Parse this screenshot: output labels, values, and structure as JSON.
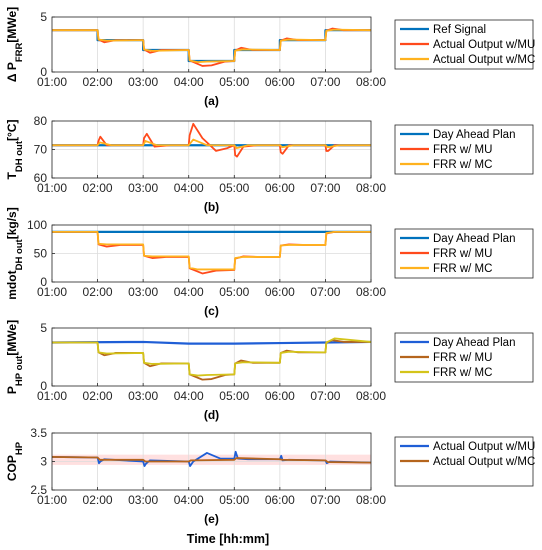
{
  "figure": {
    "xlabel": "Time [hh:mm]",
    "x_ticks": [
      "01:00",
      "02:00",
      "03:00",
      "04:00",
      "05:00",
      "06:00",
      "07:00",
      "08:00"
    ]
  },
  "chart_data": [
    {
      "type": "line",
      "panel_label": "(a)",
      "ylabel_main": "Δ P",
      "ylabel_sub": "FRR",
      "ylabel_unit": "[MWe]",
      "xlim": [
        1,
        8
      ],
      "ylim": [
        0,
        5
      ],
      "yticks": [
        0,
        5
      ],
      "grid": true,
      "legend_position": "right",
      "series": [
        {
          "name": "Ref Signal",
          "color": "#0072bd",
          "width": 2.2,
          "x": [
            1,
            2,
            2,
            3,
            3,
            4,
            4,
            5,
            5,
            6,
            6,
            7,
            7,
            8
          ],
          "y": [
            3.8,
            3.8,
            2.9,
            2.9,
            2.0,
            2.0,
            1.0,
            1.0,
            2.0,
            2.0,
            2.9,
            2.9,
            3.8,
            3.8
          ]
        },
        {
          "name": "Actual Output w/MU",
          "color": "#ff4a1c",
          "width": 1.8,
          "x": [
            1,
            2,
            2.02,
            2.15,
            2.4,
            3,
            3.02,
            3.15,
            3.4,
            4,
            4.02,
            4.3,
            4.5,
            4.8,
            5,
            5.02,
            5.15,
            5.4,
            6,
            6.02,
            6.15,
            6.4,
            7,
            7.02,
            7.15,
            7.4,
            8
          ],
          "y": [
            3.8,
            3.8,
            2.95,
            2.7,
            2.9,
            2.9,
            2.05,
            1.75,
            2.0,
            2.0,
            1.05,
            0.55,
            0.6,
            0.95,
            1.0,
            1.95,
            2.2,
            2.0,
            2.0,
            2.85,
            3.05,
            2.9,
            2.9,
            3.75,
            3.95,
            3.8,
            3.8
          ]
        },
        {
          "name": "Actual Output w/MC",
          "color": "#ffb21e",
          "width": 1.8,
          "x": [
            1,
            2,
            2.02,
            2.2,
            3,
            3.02,
            3.2,
            4,
            4.02,
            4.2,
            4.4,
            5,
            5.02,
            5.2,
            6,
            6.02,
            6.2,
            7,
            7.02,
            7.2,
            8
          ],
          "y": [
            3.8,
            3.8,
            2.95,
            2.85,
            2.9,
            2.05,
            1.92,
            2.0,
            1.05,
            0.9,
            0.95,
            1.0,
            1.95,
            2.05,
            2.0,
            2.85,
            2.95,
            2.9,
            3.75,
            3.85,
            3.8
          ]
        }
      ]
    },
    {
      "type": "line",
      "panel_label": "(b)",
      "ylabel_main": "T",
      "ylabel_sub": "DH out",
      "ylabel_unit": "[°C]",
      "xlim": [
        1,
        8
      ],
      "ylim": [
        60,
        80
      ],
      "yticks": [
        60,
        70,
        80
      ],
      "grid": true,
      "legend_position": "right",
      "series": [
        {
          "name": "Day Ahead Plan",
          "color": "#0072bd",
          "width": 2.2,
          "x": [
            1,
            8
          ],
          "y": [
            71.5,
            71.5
          ]
        },
        {
          "name": "FRR w/ MU",
          "color": "#ff4a1c",
          "width": 1.8,
          "x": [
            1,
            2,
            2.02,
            2.06,
            2.2,
            2.5,
            3,
            3.02,
            3.08,
            3.25,
            3.6,
            4,
            4.02,
            4.1,
            4.3,
            4.6,
            4.85,
            5,
            5.02,
            5.06,
            5.2,
            5.5,
            6,
            6.02,
            6.06,
            6.2,
            7,
            7.02,
            7.06,
            7.2,
            8
          ],
          "y": [
            71.5,
            71.5,
            73,
            74.5,
            71.5,
            71.5,
            71.5,
            74,
            75.5,
            71,
            71.5,
            71.5,
            75,
            79,
            74,
            69.5,
            70.5,
            71.5,
            68,
            67.5,
            71,
            71.5,
            71.5,
            69,
            68.5,
            71.5,
            71.5,
            69.5,
            69.5,
            71.5,
            71.5
          ]
        },
        {
          "name": "FRR w/ MC",
          "color": "#ffb21e",
          "width": 1.8,
          "x": [
            1,
            2,
            2.05,
            2.3,
            3,
            3.05,
            3.3,
            4,
            4.1,
            4.4,
            5,
            5.05,
            5.3,
            6,
            6.05,
            6.3,
            7,
            7.05,
            7.3,
            8
          ],
          "y": [
            71.5,
            71.5,
            72.5,
            71.5,
            71.5,
            73,
            71.5,
            71.5,
            73.5,
            71.5,
            71.5,
            70.5,
            71.5,
            71.5,
            70.8,
            71.5,
            71.5,
            70.8,
            71.5,
            71.5
          ]
        }
      ]
    },
    {
      "type": "line",
      "panel_label": "(c)",
      "ylabel_main": "mdot",
      "ylabel_sub": "DH out",
      "ylabel_unit": "[kg/s]",
      "xlim": [
        1,
        8
      ],
      "ylim": [
        0,
        100
      ],
      "yticks": [
        0,
        50,
        100
      ],
      "grid": true,
      "legend_position": "right",
      "series": [
        {
          "name": "Day Ahead Plan",
          "color": "#0072bd",
          "width": 2.2,
          "x": [
            1,
            8
          ],
          "y": [
            88,
            88
          ]
        },
        {
          "name": "FRR w/ MU",
          "color": "#ff4a1c",
          "width": 1.8,
          "x": [
            1,
            2,
            2.02,
            2.2,
            2.5,
            3,
            3.02,
            3.2,
            3.5,
            4,
            4.02,
            4.3,
            4.6,
            5,
            5.02,
            5.2,
            5.5,
            6,
            6.02,
            6.2,
            6.5,
            7,
            7.02,
            7.2,
            7.5,
            8
          ],
          "y": [
            88,
            88,
            66,
            62,
            65,
            65,
            46,
            42,
            44,
            44,
            24,
            15,
            20,
            21,
            41,
            45,
            44,
            44,
            64,
            66,
            65,
            65,
            85,
            88,
            88,
            88
          ]
        },
        {
          "name": "FRR w/ MC",
          "color": "#ffb21e",
          "width": 1.8,
          "x": [
            1,
            2,
            2.02,
            2.2,
            3,
            3.02,
            3.2,
            4,
            4.02,
            4.2,
            5,
            5.02,
            5.2,
            6,
            6.02,
            6.2,
            7,
            7.02,
            7.2,
            8
          ],
          "y": [
            88,
            88,
            67,
            66,
            66,
            46,
            45,
            45,
            25,
            22,
            22,
            42,
            44,
            44,
            64,
            65,
            65,
            86,
            88,
            88
          ]
        }
      ]
    },
    {
      "type": "line",
      "panel_label": "(d)",
      "ylabel_main": "P",
      "ylabel_sub": "HP out",
      "ylabel_unit": "[MWe]",
      "xlim": [
        1,
        8
      ],
      "ylim": [
        0,
        5
      ],
      "yticks": [
        0,
        5
      ],
      "grid": true,
      "legend_position": "right",
      "series": [
        {
          "name": "Day Ahead Plan",
          "color": "#1f5ed6",
          "width": 2.2,
          "x": [
            1,
            3,
            4,
            5,
            6,
            7,
            8
          ],
          "y": [
            3.75,
            3.8,
            3.65,
            3.65,
            3.7,
            3.75,
            3.8
          ]
        },
        {
          "name": "FRR w/ MU",
          "color": "#b5651d",
          "width": 1.8,
          "x": [
            1,
            2,
            2.02,
            2.15,
            2.4,
            3,
            3.02,
            3.15,
            3.4,
            4,
            4.02,
            4.3,
            4.5,
            4.8,
            5,
            5.02,
            5.15,
            5.4,
            6,
            6.02,
            6.15,
            6.4,
            7,
            7.02,
            7.15,
            7.4,
            8
          ],
          "y": [
            3.75,
            3.75,
            2.9,
            2.65,
            2.85,
            2.85,
            2.0,
            1.7,
            1.95,
            1.95,
            1.0,
            0.55,
            0.6,
            0.95,
            1.0,
            1.95,
            2.2,
            2.0,
            2.0,
            2.85,
            3.05,
            2.9,
            2.9,
            3.75,
            3.95,
            3.8,
            3.8
          ]
        },
        {
          "name": "FRR w/ MC",
          "color": "#d4c41a",
          "width": 1.8,
          "x": [
            1,
            2,
            2.02,
            2.2,
            3,
            3.02,
            3.2,
            4,
            4.02,
            4.2,
            4.4,
            5,
            5.02,
            5.2,
            6,
            6.02,
            6.2,
            7,
            7.02,
            7.2,
            8
          ],
          "y": [
            3.75,
            3.75,
            2.9,
            2.8,
            2.85,
            2.0,
            1.9,
            1.95,
            1.0,
            0.9,
            0.95,
            1.0,
            1.95,
            2.05,
            2.0,
            2.85,
            2.95,
            2.9,
            3.75,
            4.1,
            3.8
          ]
        }
      ]
    },
    {
      "type": "line",
      "panel_label": "(e)",
      "ylabel_main": "COP",
      "ylabel_sub": "HP",
      "ylabel_unit": "",
      "xlim": [
        1,
        8
      ],
      "ylim": [
        2.5,
        3.5
      ],
      "yticks": [
        2.5,
        3,
        3.5
      ],
      "grid": true,
      "legend_position": "right",
      "band": {
        "color": "#ffc6c6",
        "y0": 2.94,
        "y1": 3.12
      },
      "series": [
        {
          "name": "Actual Output w/MU",
          "color": "#1f5ed6",
          "width": 1.8,
          "x": [
            1,
            2,
            2.03,
            2.06,
            2.15,
            3,
            3.03,
            3.06,
            3.15,
            4,
            4.03,
            4.1,
            4.4,
            4.7,
            5,
            5.03,
            5.08,
            5.3,
            6,
            6.03,
            6.06,
            6.2,
            7,
            7.03,
            7.1,
            8
          ],
          "y": [
            3.08,
            3.07,
            2.97,
            3.0,
            3.04,
            3.0,
            2.92,
            2.96,
            3.02,
            3.0,
            2.92,
            3.0,
            3.15,
            3.05,
            3.05,
            3.17,
            3.05,
            3.04,
            3.04,
            3.1,
            3.02,
            3.03,
            3.02,
            2.97,
            3.0,
            2.98
          ]
        },
        {
          "name": "Actual Output w/MC",
          "color": "#b5651d",
          "width": 1.8,
          "x": [
            1,
            2,
            2.05,
            3,
            3.05,
            4,
            4.05,
            5,
            5.05,
            6,
            6.05,
            7,
            7.05,
            8
          ],
          "y": [
            3.08,
            3.07,
            3.03,
            3.03,
            3.0,
            3.0,
            3.02,
            3.03,
            3.06,
            3.04,
            3.03,
            3.02,
            2.99,
            2.98
          ]
        }
      ]
    }
  ]
}
